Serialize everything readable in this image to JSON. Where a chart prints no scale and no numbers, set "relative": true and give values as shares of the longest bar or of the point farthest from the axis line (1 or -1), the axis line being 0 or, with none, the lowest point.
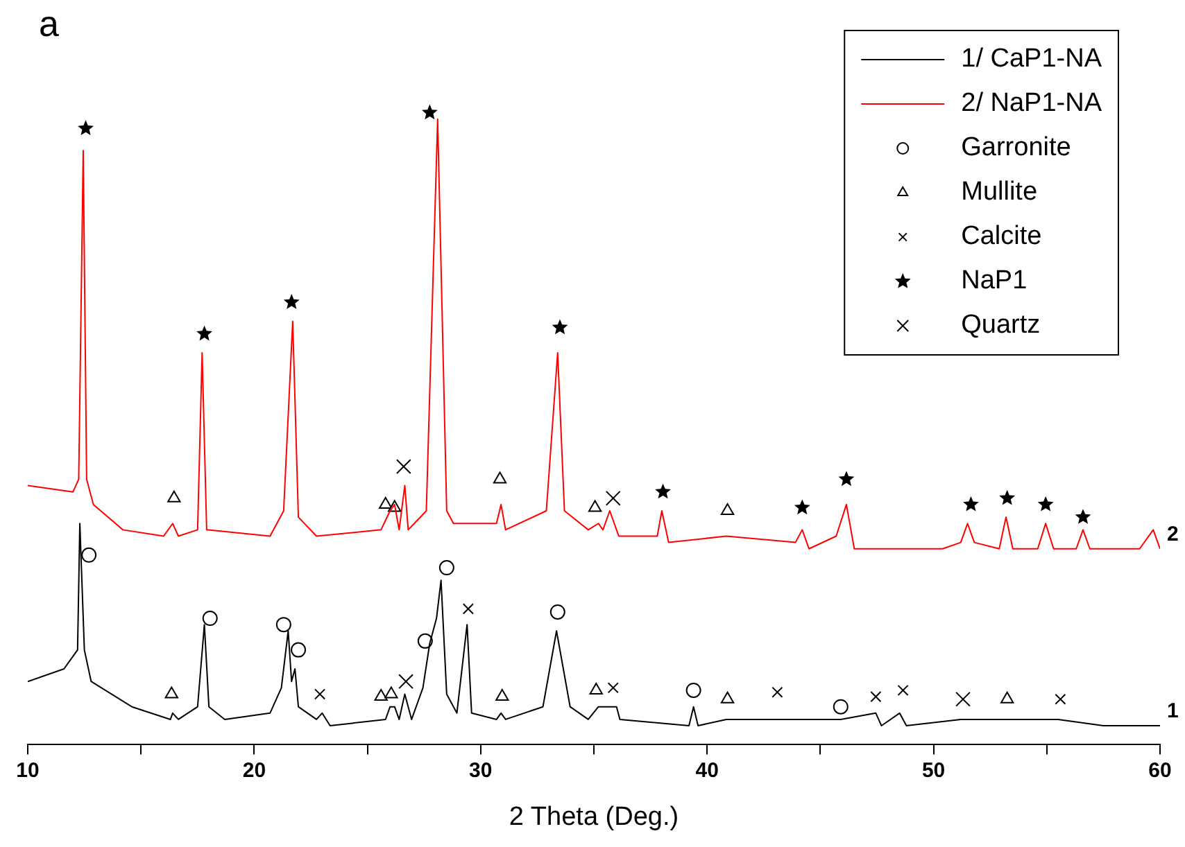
{
  "chart_data": {
    "type": "line",
    "xlabel": "2 Theta (Deg.)",
    "relative": true,
    "xlim": [
      10,
      60
    ],
    "xticks": [
      10,
      {
        "value": 15,
        "label": null
      },
      20,
      {
        "value": 25,
        "label": null
      },
      30,
      {
        "value": 35,
        "label": null
      },
      40,
      {
        "value": 45,
        "label": null
      },
      50,
      {
        "value": 55,
        "label": null
      },
      60
    ],
    "legend": "top right",
    "annotations": [
      "a",
      {
        "text": "1",
        "x": 60,
        "y": 0.03
      },
      {
        "text": "2",
        "x": 60,
        "y": 0.31
      }
    ],
    "series": [
      {
        "name": "1/ CaP1-NA",
        "color": "#000000",
        "marker": "none",
        "x": [
          10.0,
          11.6,
          12.2,
          12.3,
          12.5,
          12.8,
          14.6,
          16.3,
          16.4,
          16.65,
          17.5,
          17.8,
          18.0,
          18.7,
          20.7,
          21.2,
          21.5,
          21.65,
          21.8,
          21.95,
          22.75,
          23.0,
          23.35,
          25.8,
          26.0,
          26.2,
          26.4,
          26.65,
          26.95,
          27.45,
          27.75,
          28.05,
          28.25,
          28.5,
          28.95,
          29.4,
          29.6,
          30.7,
          30.9,
          31.1,
          32.75,
          33.35,
          33.95,
          34.75,
          35.2,
          36.0,
          36.15,
          39.2,
          39.4,
          39.6,
          40.85,
          43.1,
          45.9,
          47.45,
          47.7,
          48.5,
          48.8,
          51.2,
          53.2,
          55.5,
          57.5,
          60.0
        ],
        "values": [
          0.1,
          0.12,
          0.15,
          0.35,
          0.15,
          0.1,
          0.06,
          0.04,
          0.05,
          0.04,
          0.06,
          0.19,
          0.06,
          0.04,
          0.05,
          0.09,
          0.18,
          0.1,
          0.12,
          0.06,
          0.04,
          0.05,
          0.03,
          0.04,
          0.06,
          0.06,
          0.04,
          0.08,
          0.04,
          0.09,
          0.16,
          0.2,
          0.26,
          0.08,
          0.05,
          0.19,
          0.05,
          0.04,
          0.05,
          0.04,
          0.06,
          0.18,
          0.06,
          0.04,
          0.06,
          0.06,
          0.04,
          0.03,
          0.06,
          0.03,
          0.04,
          0.04,
          0.04,
          0.05,
          0.03,
          0.05,
          0.03,
          0.04,
          0.04,
          0.04,
          0.03,
          0.03
        ]
      },
      {
        "name": "2/ NaP1-NA",
        "color": "#ff0000",
        "marker": "none",
        "x": [
          10.0,
          12.0,
          12.25,
          12.45,
          12.6,
          12.9,
          14.2,
          16.0,
          16.4,
          16.65,
          17.5,
          17.7,
          17.9,
          20.7,
          21.3,
          21.7,
          21.95,
          22.75,
          25.6,
          26.0,
          26.2,
          26.4,
          26.65,
          26.8,
          27.6,
          28.1,
          28.5,
          28.8,
          30.7,
          30.9,
          31.1,
          32.9,
          33.4,
          33.7,
          34.75,
          35.2,
          35.4,
          35.7,
          36.1,
          37.8,
          38.0,
          38.3,
          40.85,
          43.9,
          44.2,
          44.5,
          45.7,
          46.15,
          46.5,
          50.4,
          51.2,
          51.5,
          51.8,
          52.9,
          53.2,
          53.5,
          54.6,
          54.95,
          55.3,
          56.3,
          56.6,
          56.9,
          59.1,
          59.7,
          60.0
        ],
        "values": [
          0.41,
          0.4,
          0.42,
          0.94,
          0.42,
          0.38,
          0.34,
          0.33,
          0.35,
          0.33,
          0.34,
          0.62,
          0.34,
          0.33,
          0.37,
          0.67,
          0.36,
          0.33,
          0.34,
          0.37,
          0.38,
          0.34,
          0.41,
          0.34,
          0.37,
          0.99,
          0.37,
          0.35,
          0.35,
          0.38,
          0.34,
          0.37,
          0.62,
          0.37,
          0.34,
          0.35,
          0.34,
          0.37,
          0.33,
          0.33,
          0.37,
          0.32,
          0.33,
          0.32,
          0.34,
          0.31,
          0.33,
          0.38,
          0.31,
          0.31,
          0.32,
          0.35,
          0.32,
          0.31,
          0.36,
          0.31,
          0.31,
          0.35,
          0.31,
          0.31,
          0.34,
          0.31,
          0.31,
          0.34,
          0.31
        ]
      },
      {
        "name": "Garronite",
        "type": "scatter",
        "color": "#000000",
        "marker": "circle",
        "x": [
          12.7,
          18.05,
          21.3,
          21.95,
          27.55,
          28.5,
          33.4,
          39.4,
          45.9
        ],
        "values": [
          0.3,
          0.2,
          0.19,
          0.15,
          0.164,
          0.28,
          0.21,
          0.086,
          0.06
        ]
      },
      {
        "name": "Mullite",
        "type": "scatter",
        "color": "#000000",
        "marker": "triangle",
        "x": [
          16.46,
          25.8,
          26.2,
          30.85,
          35.05,
          40.9,
          16.35,
          25.6,
          26.05,
          30.95,
          35.1,
          40.9,
          53.25
        ],
        "values": [
          0.39,
          0.38,
          0.375,
          0.42,
          0.375,
          0.37,
          0.08,
          0.076,
          0.08,
          0.076,
          0.086,
          0.072,
          0.072
        ]
      },
      {
        "name": "Calcite",
        "type": "scatter",
        "color": "#000000",
        "marker": "cross",
        "x": [
          22.9,
          29.45,
          35.85,
          43.1,
          47.45,
          48.65,
          55.6
        ],
        "values": [
          0.08,
          0.215,
          0.09,
          0.083,
          0.076,
          0.086,
          0.072
        ]
      },
      {
        "name": "NaP1",
        "type": "scatter",
        "color": "#000000",
        "marker": "star",
        "x": [
          12.56,
          17.8,
          21.65,
          27.75,
          33.5,
          38.05,
          44.2,
          46.15,
          51.65,
          53.25,
          54.95,
          56.6
        ],
        "values": [
          0.975,
          0.65,
          0.7,
          1.0,
          0.66,
          0.4,
          0.375,
          0.42,
          0.38,
          0.39,
          0.38,
          0.36
        ]
      },
      {
        "name": "Quartz",
        "type": "scatter",
        "color": "#000000",
        "marker": "cross",
        "x": [
          26.6,
          26.7,
          35.85,
          51.3
        ],
        "values": [
          0.44,
          0.1,
          0.39,
          0.072
        ]
      }
    ]
  }
}
